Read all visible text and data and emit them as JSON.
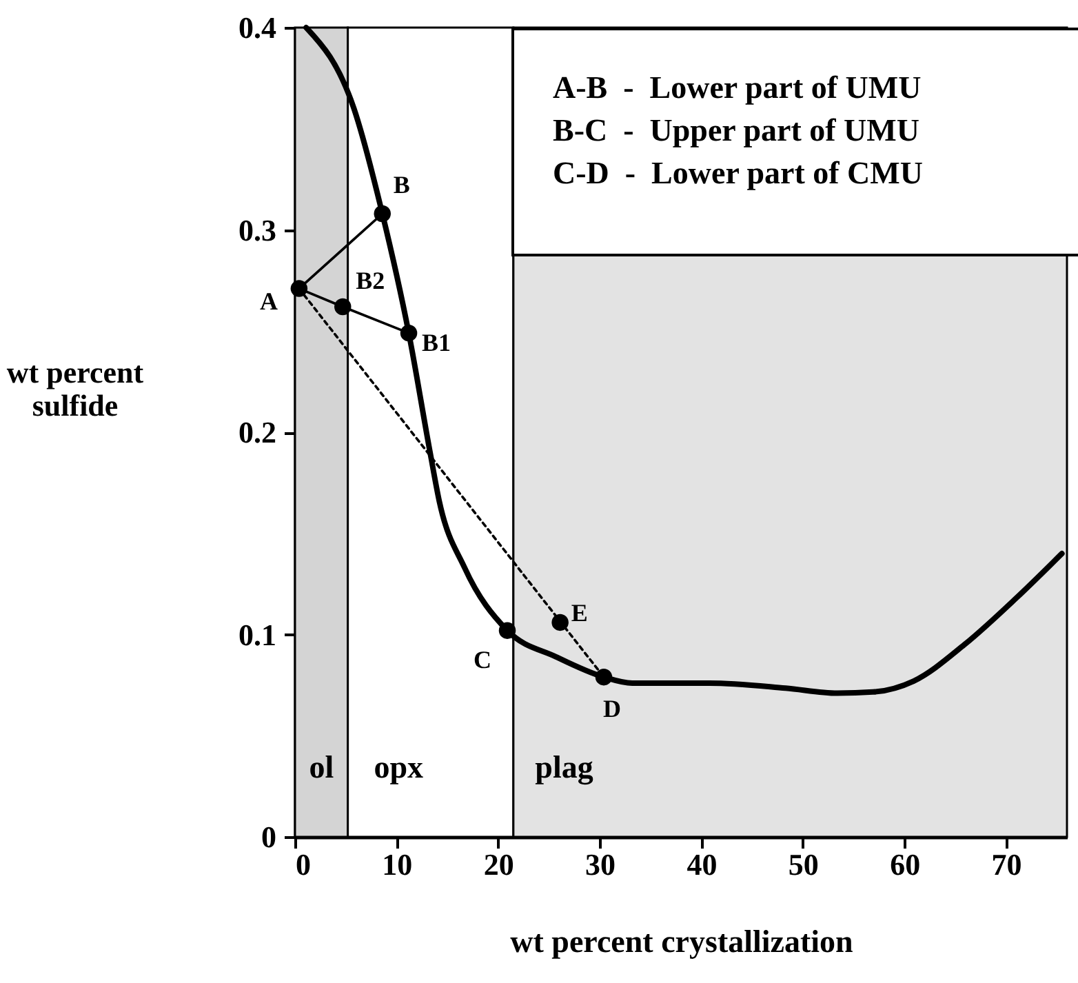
{
  "chart_data": {
    "type": "line",
    "xlabel": "wt percent crystallization",
    "ylabel": "wt percent sulfide",
    "xlim": [
      0,
      76
    ],
    "ylim": [
      0,
      0.4
    ],
    "xticks": [
      0,
      10,
      20,
      30,
      40,
      50,
      60,
      70
    ],
    "yticks": [
      0,
      0.1,
      0.2,
      0.3,
      0.4
    ],
    "series": [
      {
        "type": "line",
        "color": "#000000",
        "x": [
          1.1,
          5.8,
          8.6,
          11.2,
          13.3,
          14.2,
          16.7,
          20.9,
          25.7,
          30.4,
          33.2,
          40.8,
          48.3,
          53.4,
          56.9,
          60.9,
          65.9,
          71,
          75.5
        ],
        "values": [
          0.4,
          0.36,
          0.308,
          0.249,
          0.19,
          0.166,
          0.133,
          0.102,
          0.089,
          0.079,
          0.076,
          0.076,
          0.0735,
          0.071,
          0.0716,
          0.077,
          0.095,
          0.118,
          0.14
        ]
      },
      {
        "type": "line",
        "color": "#000000",
        "x": [
          0.4,
          8.6
        ],
        "values": [
          0.271,
          0.308
        ]
      },
      {
        "type": "line",
        "color": "#000000",
        "x": [
          0.4,
          4.7,
          11.2
        ],
        "values": [
          0.271,
          0.262,
          0.249
        ]
      },
      {
        "type": "line",
        "color": "#000000",
        "line_style": "dotted",
        "x": [
          0.4,
          30.4
        ],
        "values": [
          0.271,
          0.079
        ]
      },
      {
        "type": "scatter",
        "color": "#000000",
        "marker": "circle",
        "x": [
          0.4,
          8.6,
          11.2,
          4.7,
          20.9,
          30.4,
          26.1
        ],
        "values": [
          0.271,
          0.308,
          0.249,
          0.262,
          0.102,
          0.079,
          0.106
        ]
      }
    ],
    "bands": [
      {
        "axis": "x",
        "from": 0,
        "to": 5.2,
        "label": "ol",
        "color": "#d4d4d4"
      },
      {
        "axis": "x",
        "from": 5.2,
        "to": 21.5,
        "label": "opx",
        "color": "#ffffff"
      },
      {
        "axis": "x",
        "from": 21.5,
        "to": 76,
        "label": "plag",
        "color": "#e3e3e3"
      }
    ],
    "annotations": [
      {
        "text": "A",
        "x": 0.4,
        "y": 0.271
      },
      {
        "text": "B",
        "x": 8.6,
        "y": 0.308
      },
      {
        "text": "B1",
        "x": 11.2,
        "y": 0.249
      },
      {
        "text": "B2",
        "x": 4.7,
        "y": 0.262
      },
      {
        "text": "C",
        "x": 20.9,
        "y": 0.102
      },
      {
        "text": "D",
        "x": 30.4,
        "y": 0.079
      },
      {
        "text": "E",
        "x": 26.1,
        "y": 0.106
      },
      "A-B  -  Lower part of UMU",
      "B-C  -  Upper part of UMU",
      "C-D  -  Lower part of CMU"
    ]
  }
}
